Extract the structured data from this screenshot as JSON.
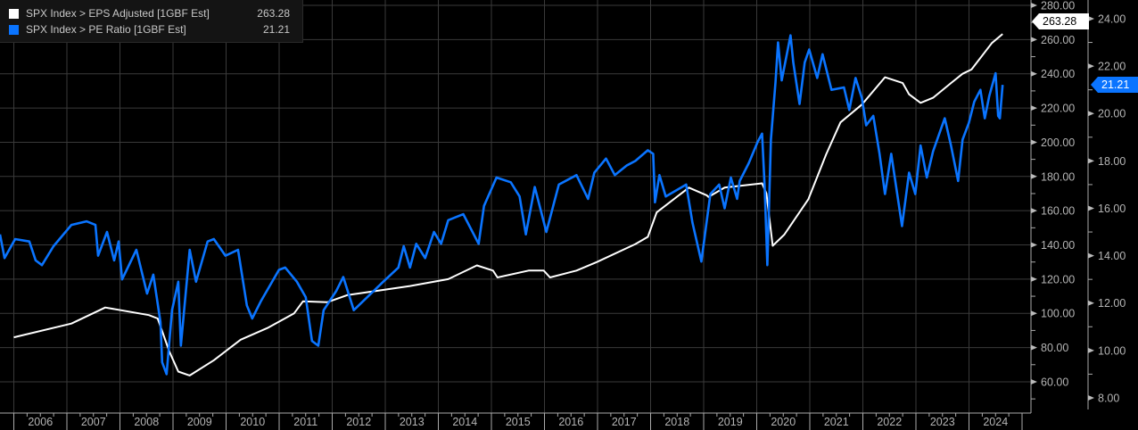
{
  "legend": {
    "items": [
      {
        "label": "SPX Index > EPS Adjusted [1GBF Est]",
        "value": "263.28",
        "color": "#ffffff"
      },
      {
        "label": "SPX Index > PE Ratio [1GBF Est]",
        "value": "21.21",
        "color": "#0a74ff"
      }
    ]
  },
  "chart_data": {
    "type": "line",
    "title": "",
    "grid": true,
    "legend_position": "top-left",
    "x_ticks": [
      "2006",
      "2007",
      "2008",
      "2009",
      "2010",
      "2011",
      "2012",
      "2013",
      "2014",
      "2015",
      "2016",
      "2017",
      "2018",
      "2019",
      "2020",
      "2021",
      "2022",
      "2023",
      "2024"
    ],
    "left_axis": {
      "ylim": [
        50,
        283
      ],
      "ticks": [
        "280.00",
        "260.00",
        "240.00",
        "220.00",
        "200.00",
        "180.00",
        "160.00",
        "140.00",
        "120.00",
        "100.00",
        "80.00",
        "60.00"
      ],
      "last_value_tag": "263.28"
    },
    "right_axis": {
      "ylim": [
        7.2,
        24.8
      ],
      "ticks": [
        "24.00",
        "22.00",
        "20.00",
        "18.00",
        "16.00",
        "14.00",
        "12.00",
        "10.00",
        "8.00"
      ],
      "last_value_tag": "21.21"
    },
    "series": [
      {
        "name": "SPX Index > EPS Adjusted [1GBF Est]",
        "axis": "left",
        "color": "#ffffff",
        "points": [
          [
            "2006-01-01",
            86
          ],
          [
            "2007-02-01",
            94
          ],
          [
            "2007-09-22",
            103.4
          ],
          [
            "2008-07-18",
            99
          ],
          [
            "2008-09-17",
            97
          ],
          [
            "2008-12-06",
            77.8
          ],
          [
            "2009-02-06",
            66
          ],
          [
            "2009-04-26",
            63.7
          ],
          [
            "2009-10-09",
            72.6
          ],
          [
            "2010-04-11",
            84.6
          ],
          [
            "2010-10-12",
            91.4
          ],
          [
            "2011-04-14",
            100
          ],
          [
            "2011-06-14",
            107
          ],
          [
            "2011-11-27",
            106.5
          ],
          [
            "2012-04-16",
            110.7
          ],
          [
            "2013-06-20",
            116
          ],
          [
            "2014-03-10",
            120
          ],
          [
            "2014-09-23",
            128
          ],
          [
            "2015-01-12",
            125
          ],
          [
            "2015-02-12",
            121
          ],
          [
            "2015-09-14",
            125
          ],
          [
            "2015-12-27",
            125
          ],
          [
            "2016-02-08",
            121
          ],
          [
            "2016-08-09",
            125
          ],
          [
            "2016-12-28",
            130
          ],
          [
            "2017-09-18",
            140.5
          ],
          [
            "2017-12-13",
            144.7
          ],
          [
            "2018-02-12",
            159
          ],
          [
            "2018-09-21",
            173.5
          ],
          [
            "2019-01-22",
            169
          ],
          [
            "2019-02-03",
            168
          ],
          [
            "2019-05-25",
            173.5
          ],
          [
            "2020-02-07",
            176
          ],
          [
            "2020-03-08",
            170
          ],
          [
            "2020-04-20",
            139.5
          ],
          [
            "2020-07-09",
            146
          ],
          [
            "2020-12-22",
            166.7
          ],
          [
            "2021-04-24",
            193
          ],
          [
            "2021-07-31",
            211.6
          ],
          [
            "2021-12-25",
            222
          ],
          [
            "2022-06-02",
            238
          ],
          [
            "2022-10-02",
            234.6
          ],
          [
            "2022-11-15",
            228
          ],
          [
            "2023-02-02",
            223
          ],
          [
            "2023-04-29",
            226
          ],
          [
            "2023-08-30",
            234.6
          ],
          [
            "2023-11-18",
            240
          ],
          [
            "2024-01-18",
            242.5
          ],
          [
            "2024-06-07",
            258
          ],
          [
            "2024-08-20",
            263.28
          ]
        ]
      },
      {
        "name": "SPX Index > PE Ratio [1GBF Est]",
        "axis": "right",
        "color": "#0a74ff",
        "points": [
          [
            "2005-09-28",
            14.9
          ],
          [
            "2005-10-29",
            13.9
          ],
          [
            "2006-01-10",
            14.7
          ],
          [
            "2006-04-18",
            14.6
          ],
          [
            "2006-05-31",
            13.8
          ],
          [
            "2006-07-13",
            13.6
          ],
          [
            "2006-10-01",
            14.4
          ],
          [
            "2007-02-01",
            15.3
          ],
          [
            "2007-05-16",
            15.45
          ],
          [
            "2007-07-16",
            15.3
          ],
          [
            "2007-08-04",
            14.0
          ],
          [
            "2007-10-04",
            15.0
          ],
          [
            "2007-11-22",
            13.8
          ],
          [
            "2007-12-23",
            14.6
          ],
          [
            "2008-01-16",
            13.0
          ],
          [
            "2008-04-23",
            14.25
          ],
          [
            "2008-07-06",
            12.4
          ],
          [
            "2008-08-18",
            13.2
          ],
          [
            "2008-10-06",
            11.2
          ],
          [
            "2008-10-18",
            9.5
          ],
          [
            "2008-11-18",
            9.0
          ],
          [
            "2008-12-25",
            11.7
          ],
          [
            "2009-02-06",
            12.9
          ],
          [
            "2009-02-24",
            10.2
          ],
          [
            "2009-04-26",
            14.25
          ],
          [
            "2009-06-08",
            12.9
          ],
          [
            "2009-08-27",
            14.6
          ],
          [
            "2009-10-09",
            14.7
          ],
          [
            "2009-12-28",
            14.0
          ],
          [
            "2010-03-24",
            14.25
          ],
          [
            "2010-05-24",
            11.9
          ],
          [
            "2010-06-30",
            11.35
          ],
          [
            "2010-08-30",
            12.1
          ],
          [
            "2010-12-31",
            13.4
          ],
          [
            "2011-02-12",
            13.5
          ],
          [
            "2011-05-03",
            12.9
          ],
          [
            "2011-07-03",
            12.25
          ],
          [
            "2011-08-15",
            10.4
          ],
          [
            "2011-09-27",
            10.2
          ],
          [
            "2011-11-03",
            11.7
          ],
          [
            "2012-01-28",
            12.5
          ],
          [
            "2012-03-17",
            13.1
          ],
          [
            "2012-05-29",
            11.7
          ],
          [
            "2012-12-18",
            12.9
          ],
          [
            "2013-04-01",
            13.5
          ],
          [
            "2013-05-08",
            14.4
          ],
          [
            "2013-06-20",
            13.5
          ],
          [
            "2013-08-02",
            14.5
          ],
          [
            "2013-10-02",
            13.9
          ],
          [
            "2013-12-02",
            15.0
          ],
          [
            "2014-01-20",
            14.5
          ],
          [
            "2014-03-10",
            15.5
          ],
          [
            "2014-06-22",
            15.75
          ],
          [
            "2014-10-05",
            14.5
          ],
          [
            "2014-11-11",
            16.1
          ],
          [
            "2015-02-05",
            17.3
          ],
          [
            "2015-05-14",
            17.1
          ],
          [
            "2015-07-14",
            16.5
          ],
          [
            "2015-08-26",
            14.9
          ],
          [
            "2015-10-26",
            16.9
          ],
          [
            "2016-01-14",
            15.0
          ],
          [
            "2016-04-09",
            17.0
          ],
          [
            "2016-08-09",
            17.4
          ],
          [
            "2016-10-28",
            16.4
          ],
          [
            "2016-12-10",
            17.5
          ],
          [
            "2017-02-28",
            18.1
          ],
          [
            "2017-04-30",
            17.4
          ],
          [
            "2017-07-19",
            17.8
          ],
          [
            "2017-09-18",
            18.0
          ],
          [
            "2017-12-13",
            18.45
          ],
          [
            "2018-01-19",
            18.3
          ],
          [
            "2018-01-31",
            16.25
          ],
          [
            "2018-03-03",
            17.4
          ],
          [
            "2018-04-15",
            16.5
          ],
          [
            "2018-09-03",
            17.0
          ],
          [
            "2018-10-16",
            15.4
          ],
          [
            "2018-12-16",
            13.75
          ],
          [
            "2019-02-16",
            16.6
          ],
          [
            "2019-04-18",
            17.0
          ],
          [
            "2019-05-25",
            16.0
          ],
          [
            "2019-07-07",
            17.3
          ],
          [
            "2019-08-19",
            16.4
          ],
          [
            "2019-09-06",
            17.15
          ],
          [
            "2019-11-07",
            17.9
          ],
          [
            "2020-01-07",
            18.8
          ],
          [
            "2020-02-07",
            19.15
          ],
          [
            "2020-02-25",
            16.9
          ],
          [
            "2020-03-14",
            13.6
          ],
          [
            "2020-04-08",
            18.9
          ],
          [
            "2020-05-09",
            21.3
          ],
          [
            "2020-05-27",
            23.0
          ],
          [
            "2020-06-21",
            21.4
          ],
          [
            "2020-08-21",
            23.3
          ],
          [
            "2020-09-09",
            22.15
          ],
          [
            "2020-10-22",
            20.4
          ],
          [
            "2020-11-27",
            22.15
          ],
          [
            "2020-12-28",
            22.7
          ],
          [
            "2021-02-21",
            21.5
          ],
          [
            "2021-03-30",
            22.5
          ],
          [
            "2021-05-30",
            21.0
          ],
          [
            "2021-08-24",
            21.1
          ],
          [
            "2021-09-30",
            20.15
          ],
          [
            "2021-11-12",
            21.5
          ],
          [
            "2021-12-25",
            20.65
          ],
          [
            "2022-01-24",
            19.5
          ],
          [
            "2022-03-14",
            19.9
          ],
          [
            "2022-04-26",
            18.3
          ],
          [
            "2022-06-02",
            16.6
          ],
          [
            "2022-07-15",
            18.3
          ],
          [
            "2022-09-27",
            15.25
          ],
          [
            "2022-11-15",
            17.5
          ],
          [
            "2022-12-28",
            16.6
          ],
          [
            "2023-02-02",
            18.65
          ],
          [
            "2023-03-17",
            17.3
          ],
          [
            "2023-04-29",
            18.4
          ],
          [
            "2023-07-18",
            19.8
          ],
          [
            "2023-08-30",
            18.65
          ],
          [
            "2023-10-18",
            17.15
          ],
          [
            "2023-11-18",
            18.9
          ],
          [
            "2023-12-31",
            19.6
          ],
          [
            "2024-02-06",
            20.5
          ],
          [
            "2024-03-20",
            21.0
          ],
          [
            "2024-04-19",
            19.8
          ],
          [
            "2024-05-20",
            20.75
          ],
          [
            "2024-07-02",
            21.7
          ],
          [
            "2024-07-20",
            19.9
          ],
          [
            "2024-08-01",
            19.8
          ],
          [
            "2024-08-20",
            21.21
          ]
        ]
      }
    ]
  }
}
